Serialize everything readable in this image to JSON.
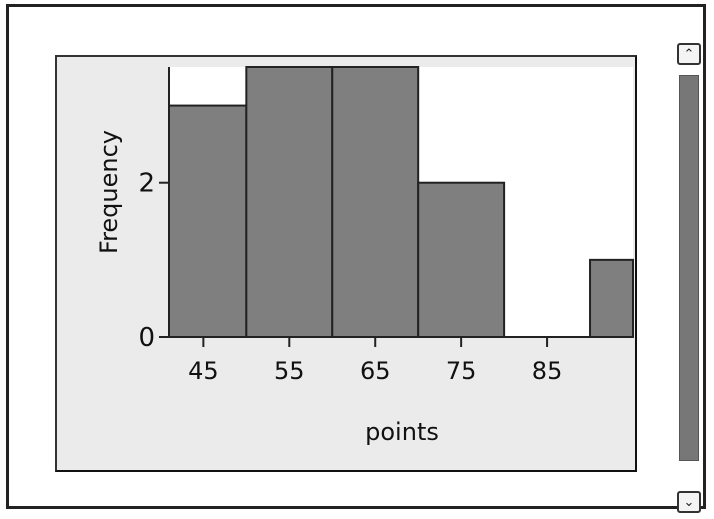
{
  "chart_data": {
    "type": "histogram",
    "bin_edges": [
      40,
      50,
      60,
      70,
      80,
      90,
      100
    ],
    "values": [
      3,
      3.5,
      3.5,
      2,
      0,
      1
    ],
    "xlabel": "points",
    "ylabel": "Frequency",
    "x_ticks": [
      45,
      55,
      65,
      75,
      85
    ],
    "y_ticks": [
      0,
      2
    ],
    "xlim": [
      41,
      95
    ],
    "ylim": [
      0,
      3.5
    ],
    "bar_color": "#7f7f7f",
    "grid": false
  },
  "scrollbar": {
    "up_icon": "chevron-up-icon",
    "down_icon": "chevron-down-icon"
  }
}
